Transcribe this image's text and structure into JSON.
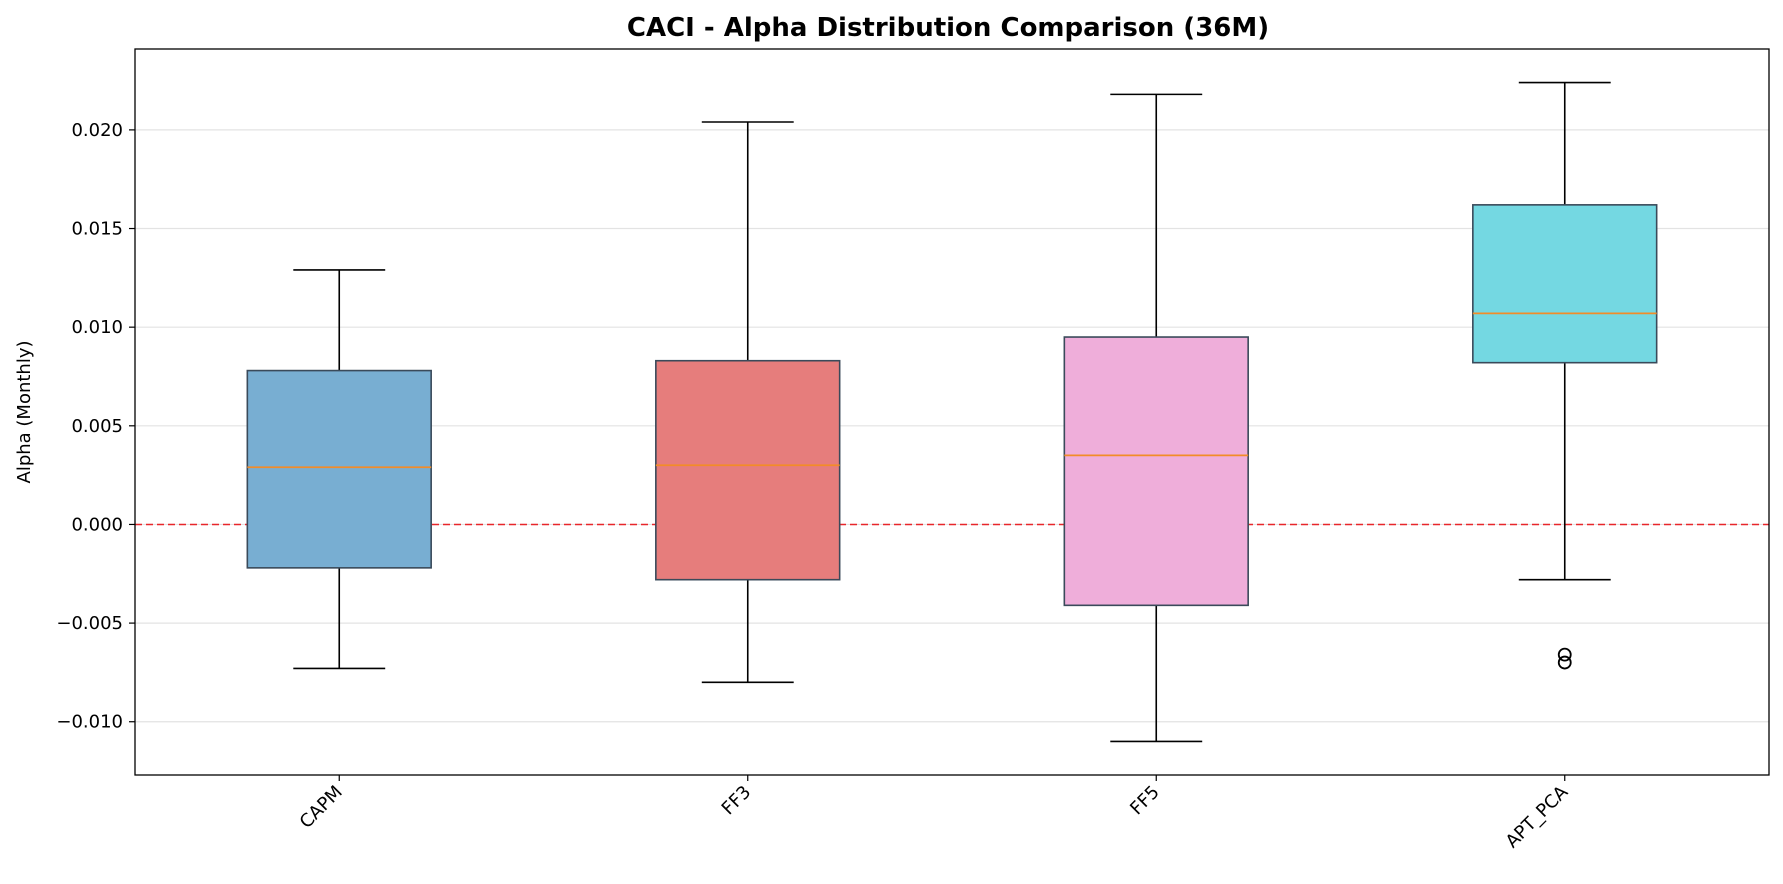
{
  "chart_data": {
    "type": "boxplot",
    "title": "CACI - Alpha Distribution Comparison (36M)",
    "xlabel": "",
    "ylabel": "Alpha (Monthly)",
    "ylim": [
      -0.0127,
      0.0241
    ],
    "yticks": [
      -0.01,
      -0.005,
      0.0,
      0.005,
      0.01,
      0.015,
      0.02
    ],
    "ytick_labels": [
      "−0.010",
      "−0.005",
      "0.000",
      "0.005",
      "0.010",
      "0.015",
      "0.020"
    ],
    "grid": "horizontal",
    "reference_line": {
      "y": 0.0,
      "color": "#e8262b",
      "style": "dashed"
    },
    "categories": [
      "CAPM",
      "FF3",
      "FF5",
      "APT_PCA"
    ],
    "boxes": [
      {
        "name": "CAPM",
        "whisker_low": -0.0073,
        "q1": -0.0022,
        "median": 0.0029,
        "q3": 0.0078,
        "whisker_high": 0.0129,
        "outliers": [],
        "color": "#78aed2"
      },
      {
        "name": "FF3",
        "whisker_low": -0.008,
        "q1": -0.0028,
        "median": 0.003,
        "q3": 0.0083,
        "whisker_high": 0.0204,
        "outliers": [],
        "color": "#e67d7c"
      },
      {
        "name": "FF5",
        "whisker_low": -0.011,
        "q1": -0.0041,
        "median": 0.0035,
        "q3": 0.0095,
        "whisker_high": 0.0218,
        "outliers": [],
        "color": "#efaeda"
      },
      {
        "name": "APT_PCA",
        "whisker_low": -0.0028,
        "q1": 0.0082,
        "median": 0.0107,
        "q3": 0.0162,
        "whisker_high": 0.0224,
        "outliers": [
          -0.0066,
          -0.007
        ],
        "color": "#74d8e2"
      }
    ],
    "median_color": "#f28c28"
  }
}
